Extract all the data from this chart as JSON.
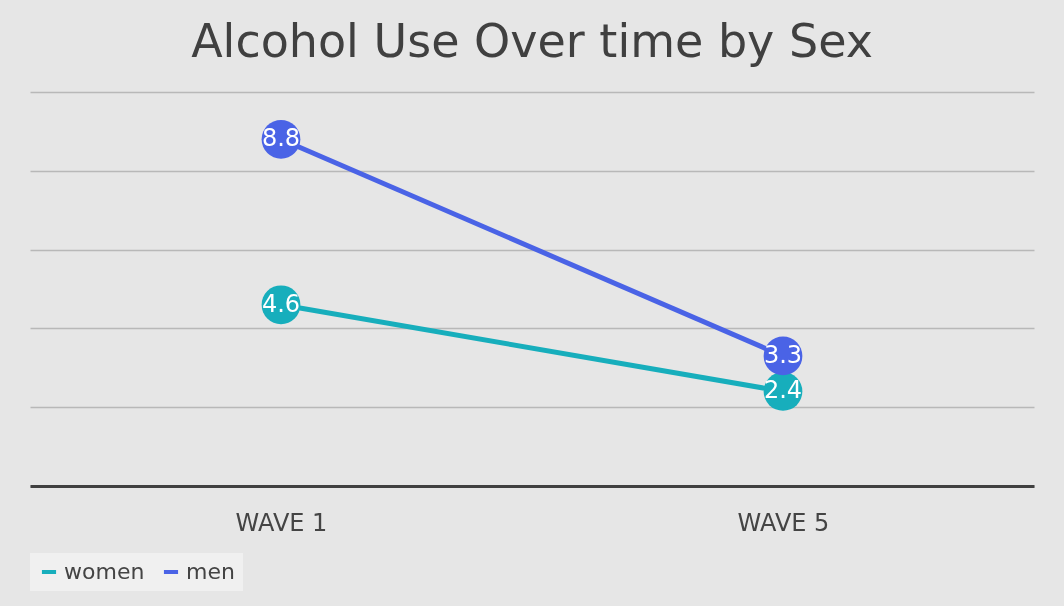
{
  "chart_data": {
    "type": "line",
    "title": "Alcohol Use Over time by Sex",
    "categories": [
      "WAVE 1",
      "WAVE 5"
    ],
    "series": [
      {
        "name": "women",
        "color": "#17aebc",
        "values": [
          4.6,
          2.4
        ]
      },
      {
        "name": "men",
        "color": "#4a63e6",
        "values": [
          8.8,
          3.3
        ]
      }
    ],
    "ylim": [
      0,
      10
    ],
    "yticks": [
      {
        "value": 0,
        "label": null
      },
      {
        "value": 2,
        "label": null
      },
      {
        "value": 4,
        "label": null
      },
      {
        "value": 6,
        "label": null
      },
      {
        "value": 8,
        "label": null
      },
      {
        "value": 10,
        "label": null
      }
    ],
    "tick_labels": "x",
    "grid": "y",
    "legend": "bottom",
    "marker": "circle",
    "line_style": "solid",
    "data_labels": true
  }
}
